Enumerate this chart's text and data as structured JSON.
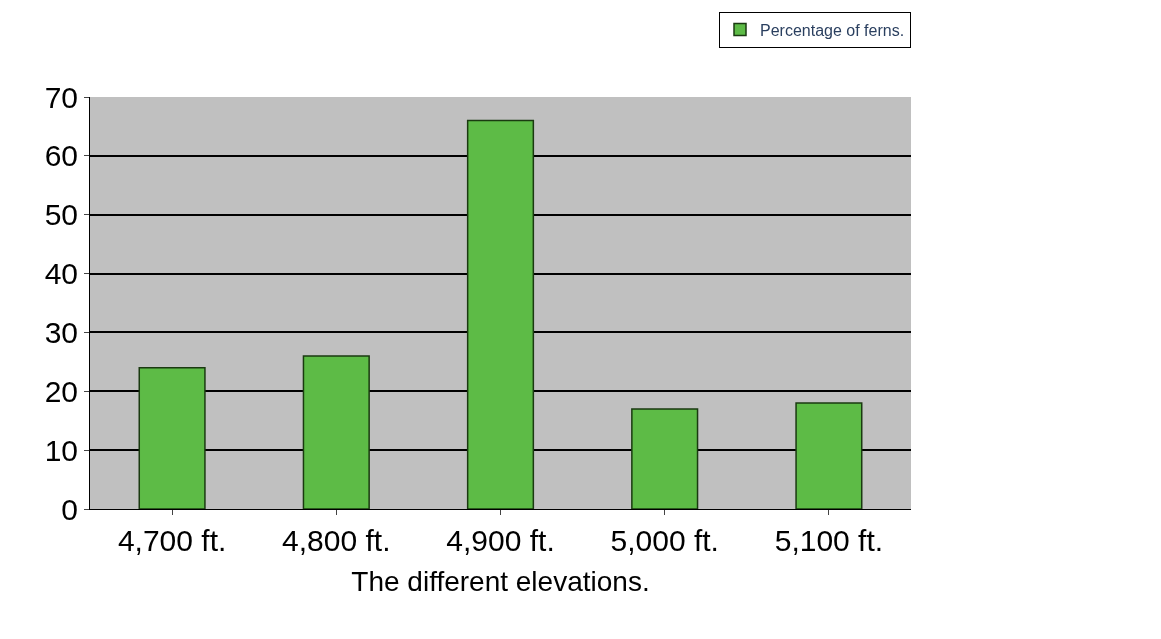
{
  "chart_data": {
    "type": "bar",
    "xlabel": "The different elevations.",
    "categories": [
      "4,700 ft.",
      "4,800 ft.",
      "4,900 ft.",
      "5,000 ft.",
      "5,100 ft."
    ],
    "series": [
      {
        "name": "Percentage of ferns.",
        "color": "#5dbb46",
        "values": [
          24,
          26,
          66,
          17,
          18
        ]
      }
    ],
    "ylim": [
      0,
      70
    ],
    "yticks": [
      0,
      10,
      20,
      30,
      40,
      50,
      60,
      70
    ],
    "grid": "y",
    "legend": "top right"
  }
}
